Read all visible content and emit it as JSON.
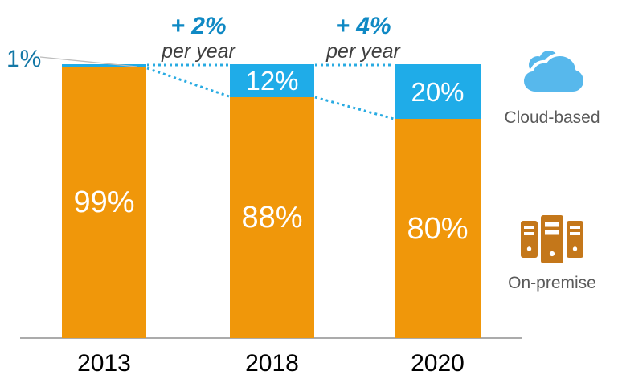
{
  "chart_data": {
    "type": "bar",
    "stacked": true,
    "title": "",
    "categories": [
      "2013",
      "2018",
      "2020"
    ],
    "series": [
      {
        "name": "Cloud-based",
        "color": "#1FACE8",
        "values": [
          1,
          12,
          20
        ],
        "labels": [
          "1%",
          "12%",
          "20%"
        ]
      },
      {
        "name": "On-premise",
        "color": "#F0970A",
        "values": [
          99,
          88,
          80
        ],
        "labels": [
          "99%",
          "88%",
          "80%"
        ]
      }
    ],
    "unit": "%",
    "ylim": [
      0,
      100
    ],
    "grid": false,
    "legend_position": "right",
    "annotations": [
      {
        "label": "+ 2%",
        "sublabel": "per year",
        "between": [
          "2013",
          "2018"
        ]
      },
      {
        "label": "+ 4%",
        "sublabel": "per year",
        "between": [
          "2018",
          "2020"
        ]
      }
    ]
  },
  "bars": [
    {
      "year": "2013",
      "cloud_label": "",
      "onprem_label": "99%",
      "external_cloud_label": "1%"
    },
    {
      "year": "2018",
      "cloud_label": "12%",
      "onprem_label": "88%"
    },
    {
      "year": "2020",
      "cloud_label": "20%",
      "onprem_label": "80%"
    }
  ],
  "annotations": {
    "a1": {
      "label": "+ 2%",
      "sublabel": "per year"
    },
    "a2": {
      "label": "+ 4%",
      "sublabel": "per year"
    }
  },
  "legend": {
    "cloud": {
      "label": "Cloud-based",
      "icon": "cloud-icon"
    },
    "onprem": {
      "label": "On-premise",
      "icon": "server-icon"
    }
  },
  "colors": {
    "cloud_fill": "#1FACE8",
    "onprem_fill": "#F0970A",
    "cloud_icon": "#57B8EC",
    "server_icon": "#C4771A",
    "annotation_blue": "#0F89C4",
    "callout_blue": "#1478A6",
    "dotted_line": "#29ABE2",
    "axis_line": "#ABABAB",
    "bar_label_text": "#FFFFFF",
    "year_text": "#000000",
    "legend_text": "#5A5A5A",
    "per_year_text": "#3F3F3F"
  }
}
